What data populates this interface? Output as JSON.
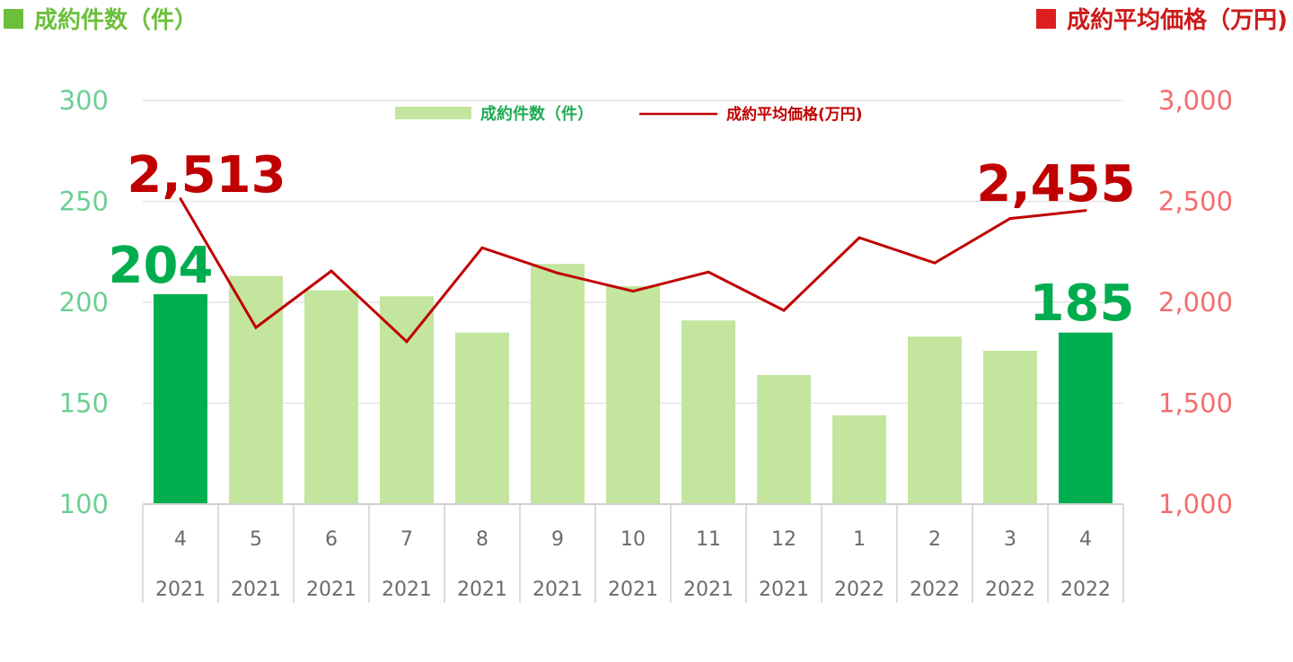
{
  "header": {
    "left_title": "成約件数（件）",
    "right_title": "成約平均価格（万円)"
  },
  "chart_data": {
    "type": "bar",
    "categories": [
      {
        "month": "4",
        "year": "2021"
      },
      {
        "month": "5",
        "year": "2021"
      },
      {
        "month": "6",
        "year": "2021"
      },
      {
        "month": "7",
        "year": "2021"
      },
      {
        "month": "8",
        "year": "2021"
      },
      {
        "month": "9",
        "year": "2021"
      },
      {
        "month": "10",
        "year": "2021"
      },
      {
        "month": "11",
        "year": "2021"
      },
      {
        "month": "12",
        "year": "2021"
      },
      {
        "month": "1",
        "year": "2022"
      },
      {
        "month": "2",
        "year": "2022"
      },
      {
        "month": "3",
        "year": "2022"
      },
      {
        "month": "4",
        "year": "2022"
      }
    ],
    "series": [
      {
        "name": "成約件数（件）",
        "type": "bar",
        "axis": "left",
        "values": [
          204,
          213,
          206,
          203,
          185,
          219,
          208,
          191,
          164,
          144,
          183,
          176,
          185
        ],
        "highlight": [
          true,
          false,
          false,
          false,
          false,
          false,
          false,
          false,
          false,
          false,
          false,
          false,
          true
        ],
        "color": "#c3e59e",
        "highlight_color": "#00b050"
      },
      {
        "name": "成約平均価格(万円)",
        "type": "line",
        "axis": "right",
        "values": [
          2513,
          1875,
          2155,
          1805,
          2270,
          2145,
          2055,
          2150,
          1960,
          2320,
          2195,
          2415,
          2455
        ],
        "color": "#c00000"
      }
    ],
    "left_axis": {
      "range": [
        100,
        300
      ],
      "ticks": [
        "100",
        "150",
        "200",
        "250",
        "300"
      ]
    },
    "right_axis": {
      "range": [
        1000,
        3000
      ],
      "ticks": [
        "1,000",
        "1,500",
        "2,000",
        "2,500",
        "3,000"
      ]
    },
    "data_labels": {
      "price_first": "2,513",
      "price_last": "2,455",
      "count_first": "204",
      "count_last": "185"
    },
    "grid": true,
    "legend_position": "top-center"
  }
}
